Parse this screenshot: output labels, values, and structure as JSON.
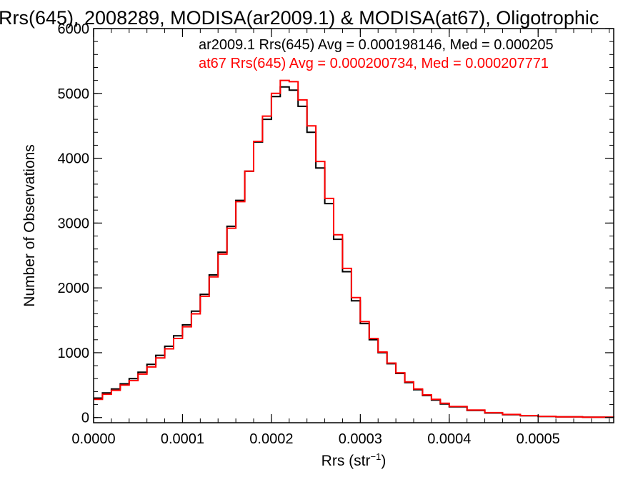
{
  "chart_data": {
    "type": "histogram",
    "title": "Rrs(645), 2008289, MODISA(ar2009.1) & MODISA(at67), Oligotrophic",
    "xlabel": "Rrs (str",
    "xlabel_sup": "−1",
    "xlabel_close": ")",
    "ylabel": "Number of Observations",
    "xlim": [
      0.0,
      0.000585
    ],
    "ylim": [
      -80,
      6000
    ],
    "x_ticks": [
      {
        "value": 0.0,
        "label": "0.0000"
      },
      {
        "value": 0.0001,
        "label": "0.0001"
      },
      {
        "value": 0.0002,
        "label": "0.0002"
      },
      {
        "value": 0.0003,
        "label": "0.0003"
      },
      {
        "value": 0.0004,
        "label": "0.0004"
      },
      {
        "value": 0.0005,
        "label": "0.0005"
      }
    ],
    "y_ticks": [
      {
        "value": 0,
        "label": "0"
      },
      {
        "value": 1000,
        "label": "1000"
      },
      {
        "value": 2000,
        "label": "2000"
      },
      {
        "value": 3000,
        "label": "3000"
      },
      {
        "value": 4000,
        "label": "4000"
      },
      {
        "value": 5000,
        "label": "5000"
      },
      {
        "value": 6000,
        "label": "6000"
      }
    ],
    "grid": false,
    "legend_placement": "top-right",
    "series": [
      {
        "name": "ar2009.1",
        "color": "#000000",
        "legend_text": "ar2009.1 Rrs(645) Avg = 0.000198146, Med = 0.000205",
        "x": [
          0.0,
          1e-05,
          2e-05,
          3e-05,
          4e-05,
          5e-05,
          6e-05,
          7e-05,
          8e-05,
          9e-05,
          0.0001,
          0.00011,
          0.00012,
          0.00013,
          0.00014,
          0.00015,
          0.00016,
          0.00017,
          0.00018,
          0.00019,
          0.0002,
          0.00021,
          0.00022,
          0.00023,
          0.00024,
          0.00025,
          0.00026,
          0.00027,
          0.00028,
          0.00029,
          0.0003,
          0.00031,
          0.00032,
          0.00033,
          0.00034,
          0.00035,
          0.00036,
          0.00037,
          0.00038,
          0.00039,
          0.0004,
          0.00042,
          0.00044,
          0.00046,
          0.00048,
          0.0005,
          0.00052,
          0.00055,
          0.000585
        ],
        "y": [
          300,
          380,
          440,
          520,
          600,
          700,
          820,
          960,
          1100,
          1260,
          1430,
          1640,
          1900,
          2200,
          2550,
          2950,
          3350,
          3800,
          4250,
          4600,
          4950,
          5100,
          5050,
          4800,
          4400,
          3850,
          3300,
          2750,
          2250,
          1800,
          1450,
          1200,
          1000,
          830,
          680,
          540,
          430,
          340,
          270,
          210,
          165,
          110,
          70,
          45,
          28,
          16,
          10,
          5,
          2
        ]
      },
      {
        "name": "at67",
        "color": "#ff0000",
        "legend_text": "at67 Rrs(645) Avg = 0.000200734, Med = 0.000207771",
        "x": [
          0.0,
          1e-05,
          2e-05,
          3e-05,
          4e-05,
          5e-05,
          6e-05,
          7e-05,
          8e-05,
          9e-05,
          0.0001,
          0.00011,
          0.00012,
          0.00013,
          0.00014,
          0.00015,
          0.00016,
          0.00017,
          0.00018,
          0.00019,
          0.0002,
          0.00021,
          0.00022,
          0.00023,
          0.00024,
          0.00025,
          0.00026,
          0.00027,
          0.00028,
          0.00029,
          0.0003,
          0.00031,
          0.00032,
          0.00033,
          0.00034,
          0.00035,
          0.00036,
          0.00037,
          0.00038,
          0.00039,
          0.0004,
          0.00042,
          0.00044,
          0.00046,
          0.00048,
          0.0005,
          0.00052,
          0.00055,
          0.000585
        ],
        "y": [
          280,
          360,
          420,
          500,
          570,
          670,
          780,
          920,
          1060,
          1220,
          1400,
          1600,
          1870,
          2170,
          2520,
          2920,
          3330,
          3800,
          4260,
          4650,
          5000,
          5200,
          5180,
          4900,
          4500,
          3950,
          3380,
          2820,
          2300,
          1850,
          1480,
          1220,
          1010,
          840,
          690,
          550,
          440,
          350,
          280,
          220,
          170,
          115,
          75,
          48,
          30,
          18,
          11,
          6,
          2
        ]
      }
    ]
  }
}
